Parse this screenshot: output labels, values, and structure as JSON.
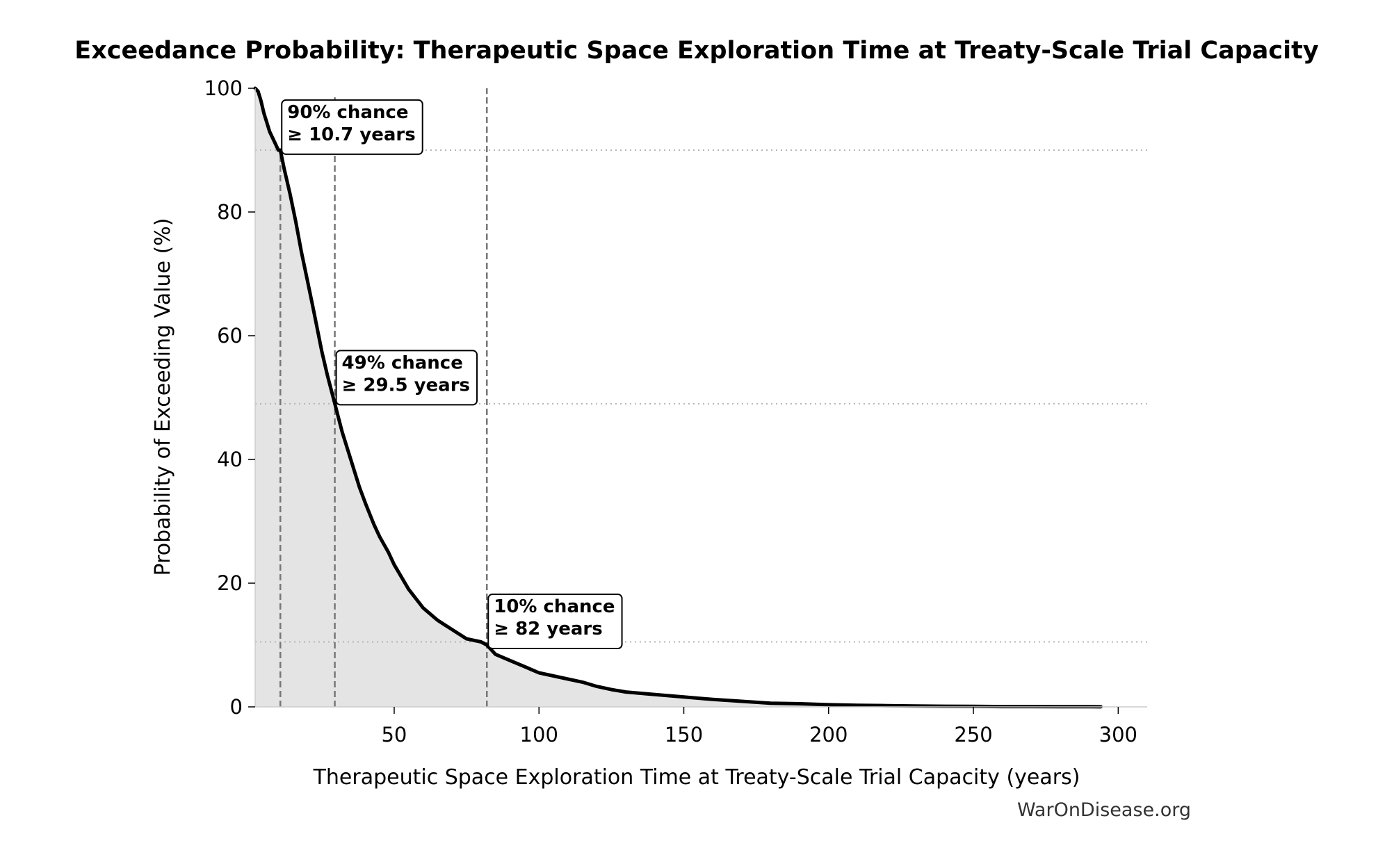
{
  "chart_data": {
    "type": "area",
    "title": "Exceedance Probability: Therapeutic Space Exploration Time at Treaty-Scale Trial Capacity",
    "xlabel": "Therapeutic Space Exploration Time at Treaty-Scale Trial Capacity (years)",
    "ylabel": "Probability of Exceeding Value (%)",
    "xlim": [
      2,
      310
    ],
    "ylim": [
      0,
      100
    ],
    "x_ticks": [
      50,
      100,
      150,
      200,
      250,
      300
    ],
    "y_ticks": [
      0,
      20,
      40,
      60,
      80,
      100
    ],
    "grid": false,
    "series": [
      {
        "x": [
          2,
          3,
          4,
          5,
          6,
          7,
          8,
          9,
          10,
          10.7,
          12,
          14,
          16,
          18,
          20,
          22,
          25,
          27,
          29.5,
          32,
          35,
          38,
          40,
          43,
          45,
          48,
          50,
          55,
          60,
          65,
          70,
          75,
          80,
          82,
          85,
          90,
          95,
          100,
          105,
          110,
          115,
          120,
          125,
          130,
          140,
          150,
          160,
          170,
          180,
          190,
          200,
          210,
          220,
          230,
          240,
          250,
          260,
          270,
          280,
          290,
          294
        ],
        "y": [
          100,
          99.5,
          98,
          96,
          94.5,
          93,
          92,
          91,
          90,
          90,
          87,
          83,
          78.5,
          73.5,
          69,
          64.5,
          57.5,
          53.5,
          49,
          44.5,
          40,
          35.5,
          33,
          29.5,
          27.5,
          25,
          23,
          19,
          16,
          14,
          12.5,
          11,
          10.5,
          10,
          8.5,
          7.5,
          6.5,
          5.5,
          5,
          4.5,
          4,
          3.3,
          2.8,
          2.4,
          2,
          1.6,
          1.2,
          0.9,
          0.6,
          0.5,
          0.35,
          0.25,
          0.2,
          0.15,
          0.1,
          0.08,
          0.05,
          0.04,
          0.03,
          0.02,
          0.01
        ]
      }
    ],
    "reference_lines": {
      "vertical": [
        10.7,
        29.5,
        82
      ],
      "horizontal": [
        90,
        49,
        10.5
      ]
    },
    "annotations": [
      {
        "line1": "90% chance",
        "line2": "≥ 10.7 years",
        "x": 10.7,
        "y": 96.3
      },
      {
        "line1": "49% chance",
        "line2": "≥ 29.5 years",
        "x": 29.5,
        "y": 55.8
      },
      {
        "line1": "10% chance",
        "line2": "≥ 82 years",
        "x": 82,
        "y": 16.4
      }
    ],
    "colors": {
      "line": "#000000",
      "fill": "#e4e4e4",
      "reference": "#777777",
      "horizontal_reference": "#b5b5b5"
    }
  },
  "watermark": "WarOnDisease.org"
}
